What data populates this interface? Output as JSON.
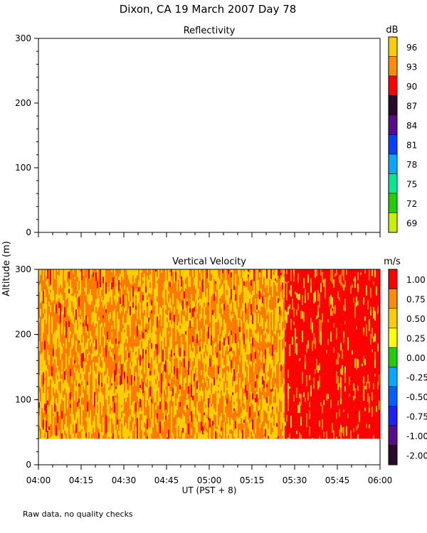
{
  "title": "Dixon, CA 19 March 2007  Day  78",
  "footnote": "Raw data, no quality checks",
  "shared_ylabel": "Altitude (m)",
  "xlabel": "UT  (PST + 8)",
  "chart_data": [
    {
      "type": "heatmap",
      "title": "Reflectivity",
      "ylim": [
        0,
        300
      ],
      "yticks": [
        "0",
        "100",
        "200",
        "300"
      ],
      "xticks": [
        "04:00",
        "04:15",
        "04:30",
        "04:45",
        "05:00",
        "05:15",
        "05:30",
        "05:45",
        "06:00"
      ],
      "colorbar": {
        "unit": "dB",
        "labels": [
          "96",
          "93",
          "90",
          "87",
          "84",
          "81",
          "78",
          "75",
          "72",
          "69"
        ],
        "colors": [
          "#ffcc00",
          "#ff8c00",
          "#ff0000",
          "#2a0a2a",
          "#5a0a8c",
          "#0040ff",
          "#00aaff",
          "#00e890",
          "#22d000",
          "#c8f000"
        ]
      },
      "data_present": false
    },
    {
      "type": "heatmap",
      "title": "Vertical Velocity",
      "ylim": [
        0,
        300
      ],
      "data_altitude_range": [
        40,
        300
      ],
      "yticks": [
        "0",
        "100",
        "200",
        "300"
      ],
      "xticks": [
        "04:00",
        "04:15",
        "04:30",
        "04:45",
        "05:00",
        "05:15",
        "05:30",
        "05:45",
        "06:00"
      ],
      "colorbar": {
        "unit": "m/s",
        "labels": [
          "1.00",
          "0.75",
          "0.50",
          "0.25",
          "0.00",
          "-0.25",
          "-0.50",
          "-0.75",
          "-1.00",
          "-2.00"
        ],
        "colors": [
          "#ff0000",
          "#ff8c00",
          "#ffcc00",
          "#ffff00",
          "#22d000",
          "#00aaff",
          "#0060ff",
          "#2020ff",
          "#5a0a8c",
          "#2a0a2a"
        ]
      },
      "field_colors": {
        "high": "#ff0000",
        "mid": "#ff7a00",
        "low": "#ffd000"
      },
      "transition_time": "05:25",
      "summary": "Mostly 0.50–0.75 m/s from 04:00 to ~05:25, then predominantly >1.00 m/s until 06:00"
    }
  ]
}
